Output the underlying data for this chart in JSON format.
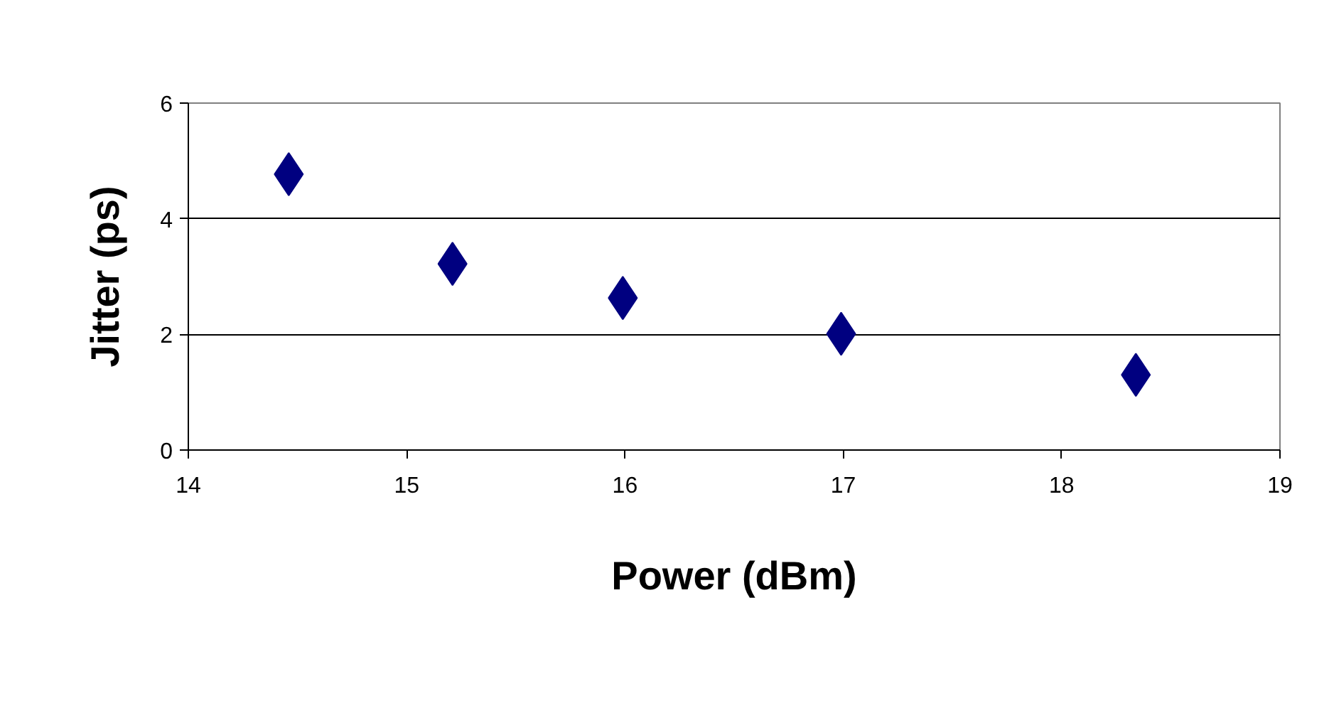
{
  "chart_data": {
    "type": "scatter",
    "xlabel": "Power (dBm)",
    "ylabel": "Jitter (ps)",
    "x": [
      14.46,
      15.21,
      15.99,
      16.99,
      18.34
    ],
    "series": [
      {
        "color": "#000080",
        "values": [
          4.77,
          3.22,
          2.63,
          2.01,
          1.3
        ]
      }
    ],
    "xlim": [
      14,
      19
    ],
    "xticks": [
      14,
      15,
      16,
      17,
      18,
      19
    ],
    "ylim": [
      0,
      6
    ],
    "yticks": [
      0,
      2,
      4,
      6
    ],
    "grid": "y",
    "marker": "diamond"
  }
}
